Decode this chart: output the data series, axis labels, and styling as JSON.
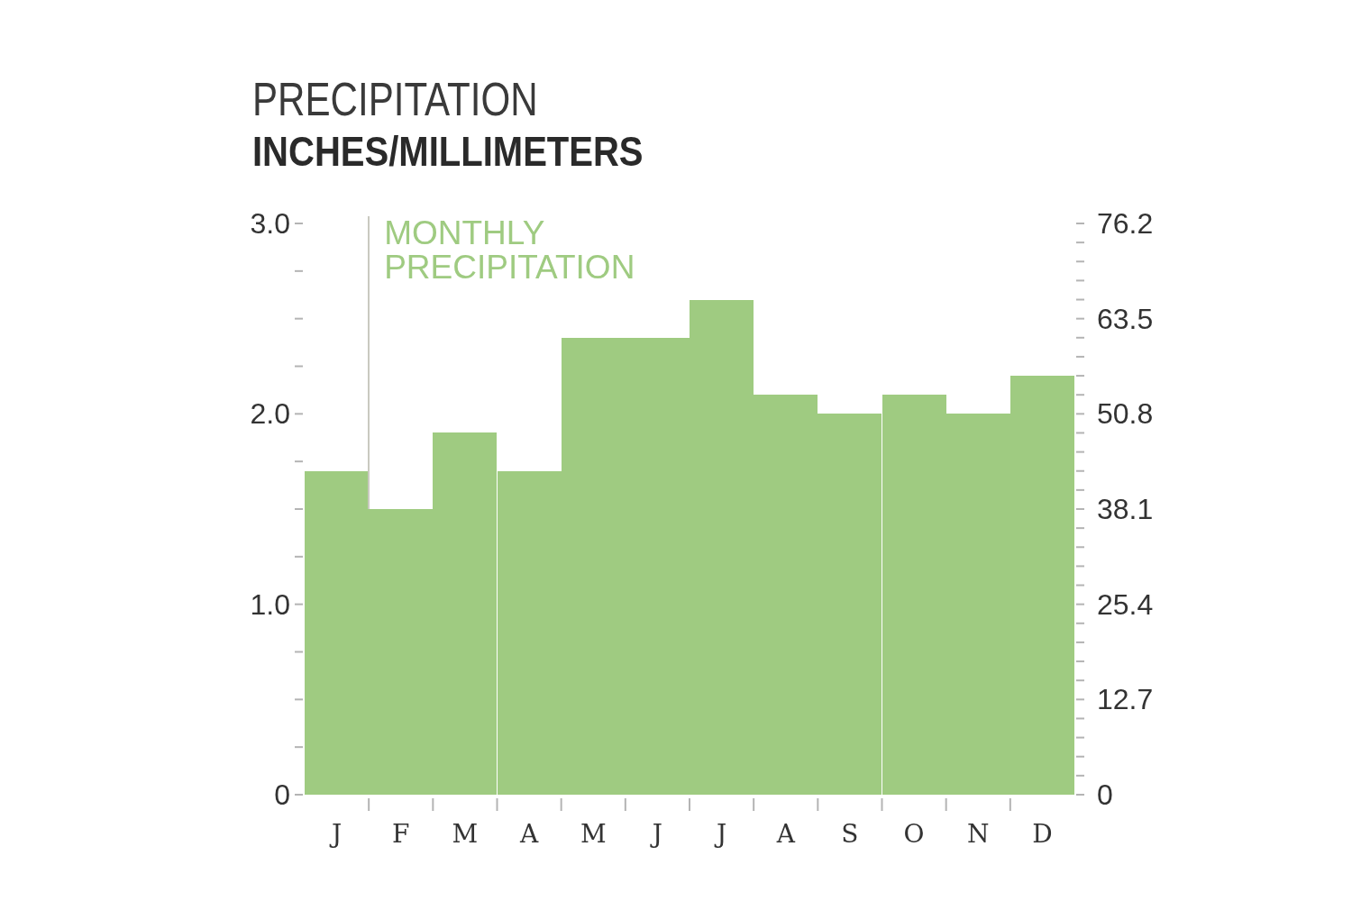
{
  "chart_data": {
    "type": "bar",
    "title": "PRECIPITATION",
    "subtitle": "INCHES/MILLIMETERS",
    "categories": [
      "J",
      "F",
      "M",
      "A",
      "M",
      "J",
      "J",
      "A",
      "S",
      "O",
      "N",
      "D"
    ],
    "series": [
      {
        "name": "MONTHLY PRECIPITATION",
        "color": "#9fcb81",
        "values": [
          1.7,
          1.5,
          1.9,
          1.7,
          2.4,
          2.4,
          2.6,
          2.1,
          2.0,
          2.1,
          2.0,
          2.2
        ]
      }
    ],
    "ylim": [
      0,
      3
    ],
    "yticks": [
      0,
      {
        "value": 0.25,
        "label": null
      },
      {
        "value": 0.5,
        "label": null
      },
      {
        "value": 0.75,
        "label": null
      },
      {
        "value": 1,
        "label": "1.0"
      },
      {
        "value": 1.25,
        "label": null
      },
      {
        "value": 1.5,
        "label": null
      },
      {
        "value": 1.75,
        "label": null
      },
      {
        "value": 2,
        "label": "2.0"
      },
      {
        "value": 2.25,
        "label": null
      },
      {
        "value": 2.5,
        "label": null
      },
      {
        "value": 2.75,
        "label": null
      },
      {
        "value": 3,
        "label": "3.0"
      }
    ],
    "y2lim": [
      0,
      76.2
    ],
    "y2ticks": [
      0,
      {
        "value": 2.54,
        "label": null
      },
      {
        "value": 5.08,
        "label": null
      },
      {
        "value": 7.62,
        "label": null
      },
      {
        "value": 10.16,
        "label": null
      },
      12.7,
      {
        "value": 15.24,
        "label": null
      },
      {
        "value": 17.78,
        "label": null
      },
      {
        "value": 20.32,
        "label": null
      },
      {
        "value": 22.86,
        "label": null
      },
      25.4,
      {
        "value": 27.94,
        "label": null
      },
      {
        "value": 30.48,
        "label": null
      },
      {
        "value": 33.02,
        "label": null
      },
      {
        "value": 35.56,
        "label": null
      },
      38.1,
      {
        "value": 40.64,
        "label": null
      },
      {
        "value": 43.18,
        "label": null
      },
      {
        "value": 45.72,
        "label": null
      },
      {
        "value": 48.26,
        "label": null
      },
      50.8,
      {
        "value": 53.34,
        "label": null
      },
      {
        "value": 55.88,
        "label": null
      },
      {
        "value": 58.42,
        "label": null
      },
      {
        "value": 60.96,
        "label": null
      },
      63.5,
      {
        "value": 66.04,
        "label": null
      },
      {
        "value": 68.58,
        "label": null
      },
      {
        "value": 71.12,
        "label": null
      },
      {
        "value": 73.66,
        "label": null
      },
      76.2
    ]
  }
}
